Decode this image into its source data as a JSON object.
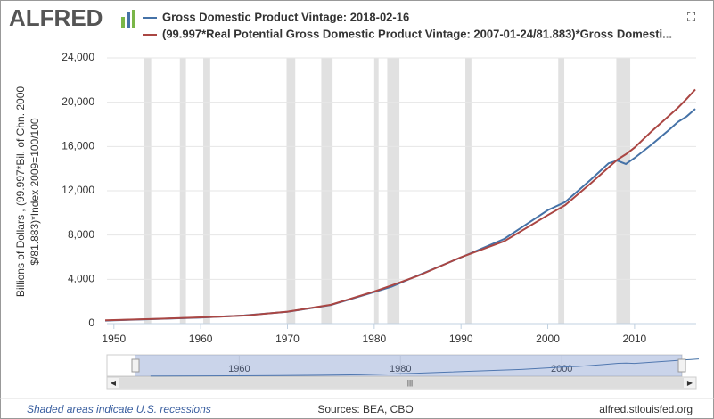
{
  "logo": "ALFRED",
  "chart_data": {
    "type": "line",
    "y_label": [
      "Billions of Dollars , (99.997*Bil. of Chn. 2000",
      "$/81.883)*Index 2009=100/100"
    ],
    "x": [
      1949,
      1950,
      1955,
      1960,
      1965,
      1970,
      1975,
      1980,
      1982,
      1985,
      1990,
      1995,
      2000,
      2002,
      2005,
      2007,
      2008,
      2009,
      2010,
      2012,
      2014,
      2015,
      2016,
      2017
    ],
    "series": [
      {
        "name": "Gross Domestic Product Vintage: 2018-02-16",
        "color": "#4572a7",
        "values": [
          270,
          300,
          420,
          540,
          740,
          1070,
          1680,
          2860,
          3340,
          4340,
          5980,
          7660,
          10250,
          10980,
          13040,
          14480,
          14720,
          14420,
          14960,
          16200,
          17520,
          18220,
          18710,
          19400
        ]
      },
      {
        "name": "(99.997*Real Potential Gross Domestic Product Vintage: 2007-01-24/81.883)*Gross Domesti...",
        "color": "#aa4643",
        "values": [
          300,
          320,
          430,
          560,
          720,
          1080,
          1700,
          2900,
          3450,
          4300,
          6000,
          7450,
          9800,
          10700,
          12700,
          14100,
          14800,
          15300,
          15900,
          17400,
          18800,
          19500,
          20300,
          21150
        ]
      }
    ],
    "xlim": [
      1949.2,
      2017.1
    ],
    "ylim": [
      0,
      24000
    ],
    "xticks": [
      1950,
      1960,
      1970,
      1980,
      1990,
      2000,
      2010
    ],
    "yticks": [
      0,
      {
        "value": 4000,
        "label": "4,000"
      },
      {
        "value": 8000,
        "label": "8,000"
      },
      {
        "value": 12000,
        "label": "12,000"
      },
      {
        "value": 16000,
        "label": "16,000"
      },
      {
        "value": 20000,
        "label": "20,000"
      },
      {
        "value": 24000,
        "label": "24,000"
      }
    ],
    "grid": true,
    "recessions": [
      [
        1953.5,
        1954.3
      ],
      [
        1957.6,
        1958.3
      ],
      [
        1960.3,
        1961.1
      ],
      [
        1969.9,
        1970.9
      ],
      [
        1973.9,
        1975.2
      ],
      [
        1980.0,
        1980.5
      ],
      [
        1981.5,
        1982.9
      ],
      [
        1990.5,
        1991.2
      ],
      [
        2001.2,
        2001.9
      ],
      [
        2007.9,
        2009.5
      ]
    ],
    "navigator_xlim": [
      1943.6,
      2014.9
    ],
    "navigator_xticks": [
      1960,
      1980,
      2000
    ],
    "footer": {
      "left": "Shaded areas indicate U.S. recessions",
      "center": "Sources: BEA, CBO",
      "right": "alfred.stlouisfed.org"
    }
  }
}
